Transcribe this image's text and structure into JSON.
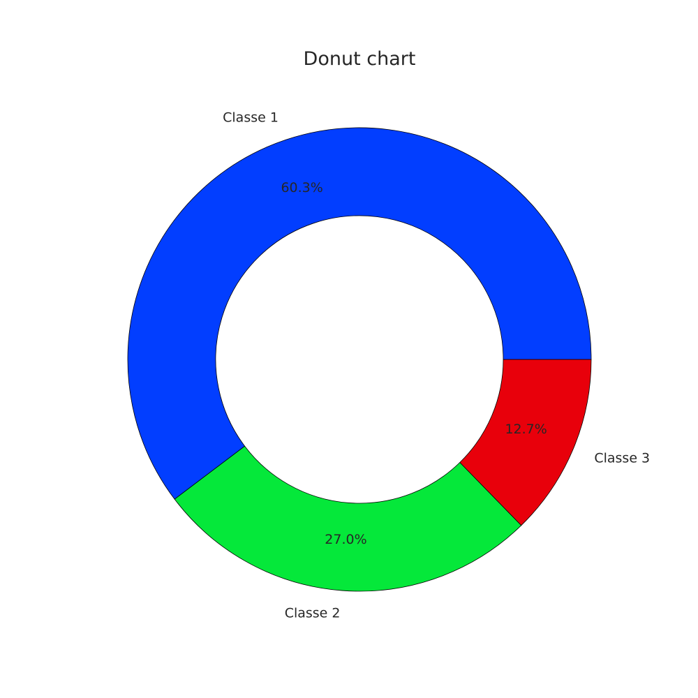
{
  "chart_data": {
    "type": "pie",
    "variant": "donut",
    "title": "Donut chart",
    "categories": [
      "Classe 1",
      "Classe 2",
      "Classe 3"
    ],
    "values": [
      60.3,
      27.0,
      12.7
    ],
    "percent_labels": [
      "60.3%",
      "27.0%",
      "12.7%"
    ],
    "colors": [
      "#023eff",
      "#05e83a",
      "#e8000b"
    ],
    "start_angle_deg": 0,
    "direction": "counterclockwise",
    "legend": "none"
  }
}
